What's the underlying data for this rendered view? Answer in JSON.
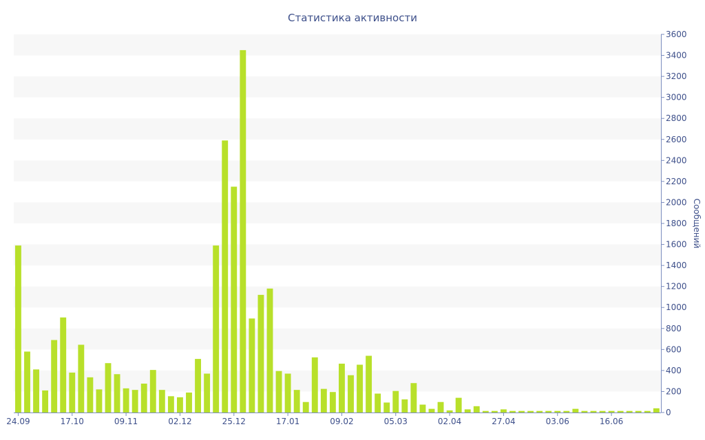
{
  "chart_data": {
    "type": "bar",
    "title": "Статистика активности",
    "xlabel": "",
    "ylabel": "Сообщений",
    "ylim": [
      0,
      3600
    ],
    "yticks": [
      0,
      200,
      400,
      600,
      800,
      1000,
      1200,
      1400,
      1600,
      1800,
      2000,
      2200,
      2400,
      2600,
      2800,
      3000,
      3200,
      3400,
      3600
    ],
    "y_axis_side": "right",
    "grid": "alternating horizontal bands",
    "legend": "none",
    "x_tick_labels": [
      {
        "index": 0,
        "label": "24.09"
      },
      {
        "index": 6,
        "label": "17.10"
      },
      {
        "index": 12,
        "label": "09.11"
      },
      {
        "index": 18,
        "label": "02.12"
      },
      {
        "index": 24,
        "label": "25.12"
      },
      {
        "index": 30,
        "label": "17.01"
      },
      {
        "index": 36,
        "label": "09.02"
      },
      {
        "index": 42,
        "label": "05.03"
      },
      {
        "index": 48,
        "label": "02.04"
      },
      {
        "index": 54,
        "label": "27.04"
      },
      {
        "index": 60,
        "label": "03.06"
      },
      {
        "index": 66,
        "label": "16.06"
      }
    ],
    "values": [
      1590,
      580,
      410,
      210,
      690,
      905,
      380,
      645,
      335,
      220,
      470,
      365,
      230,
      215,
      275,
      405,
      215,
      155,
      145,
      190,
      510,
      370,
      1590,
      2590,
      2150,
      3450,
      895,
      1120,
      1180,
      395,
      370,
      215,
      100,
      525,
      225,
      195,
      465,
      355,
      455,
      540,
      180,
      95,
      205,
      125,
      280,
      75,
      35,
      100,
      20,
      140,
      30,
      60,
      15,
      15,
      30,
      15,
      15,
      15,
      15,
      15,
      15,
      15,
      35,
      15,
      15,
      15,
      15,
      15,
      15,
      15,
      15,
      40
    ],
    "colors": {
      "bar": "#b8e02a",
      "band": "#f7f7f7",
      "text": "#3d4f8a",
      "axis": "#7a8cbf"
    }
  }
}
